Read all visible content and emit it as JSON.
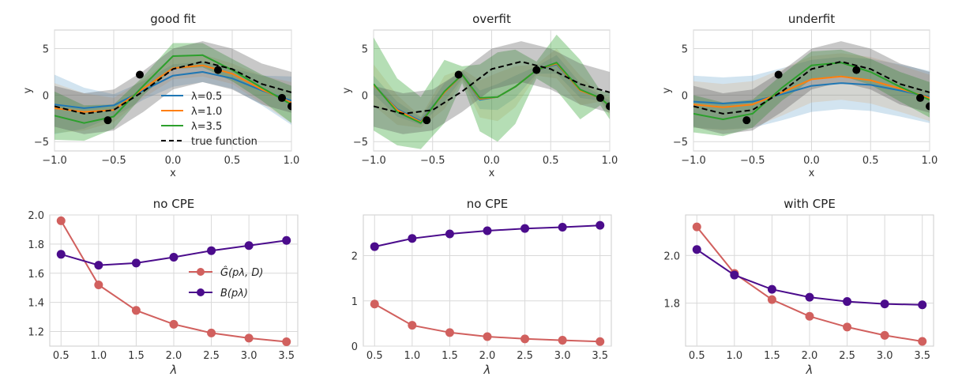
{
  "chart_data": [
    {
      "type": "line",
      "title": "good fit",
      "xlabel": "x",
      "ylabel": "y",
      "xlim": [
        -1.0,
        1.0
      ],
      "ylim": [
        -6,
        7
      ],
      "xticks": [
        -1.0,
        -0.5,
        0.0,
        0.5,
        1.0
      ],
      "xtick_labels": [
        "−1.0",
        "−0.5",
        "0.0",
        "0.5",
        "1.0"
      ],
      "yticks": [
        -5,
        0,
        5
      ],
      "ytick_labels": [
        "−5",
        "0",
        "5"
      ],
      "grid": true,
      "legend_placement": "lower-center",
      "legend": [
        {
          "label": "λ=0.5",
          "color": "#1f77b4",
          "style": "solid"
        },
        {
          "label": "λ=1.0",
          "color": "#ff7f0e",
          "style": "solid"
        },
        {
          "label": "λ=3.5",
          "color": "#2ca02c",
          "style": "solid"
        },
        {
          "label": "true function",
          "color": "#000000",
          "style": "dashed"
        }
      ],
      "points": {
        "x": [
          -0.55,
          -0.28,
          0.38,
          0.92,
          1.0
        ],
        "y": [
          -2.7,
          2.2,
          2.7,
          -0.3,
          -1.2
        ]
      },
      "series": [
        {
          "name": "λ=0.5",
          "color": "#1f77b4",
          "x": [
            -1.0,
            -0.75,
            -0.5,
            -0.25,
            0.0,
            0.25,
            0.5,
            0.75,
            1.0
          ],
          "y": [
            -1.0,
            -1.4,
            -1.1,
            0.5,
            2.1,
            2.5,
            1.8,
            0.5,
            -0.6
          ],
          "band": [
            3.2,
            2.2,
            1.2,
            1.0,
            1.2,
            1.1,
            1.1,
            1.6,
            2.6
          ]
        },
        {
          "name": "λ=1.0",
          "color": "#ff7f0e",
          "x": [
            -1.0,
            -0.75,
            -0.5,
            -0.25,
            0.0,
            0.25,
            0.5,
            0.75,
            1.0
          ],
          "y": [
            -1.4,
            -1.8,
            -1.6,
            0.7,
            2.9,
            3.2,
            2.3,
            0.6,
            -0.8
          ],
          "band": [
            2.7,
            2.0,
            1.3,
            1.0,
            1.2,
            1.2,
            1.1,
            1.5,
            2.2
          ]
        },
        {
          "name": "λ=3.5",
          "color": "#2ca02c",
          "x": [
            -1.0,
            -0.75,
            -0.5,
            -0.25,
            0.0,
            0.25,
            0.5,
            0.75,
            1.0
          ],
          "y": [
            -2.2,
            -3.0,
            -2.3,
            1.0,
            4.2,
            4.3,
            2.7,
            0.8,
            -1.0
          ],
          "band": [
            2.6,
            1.9,
            1.3,
            1.0,
            1.4,
            1.3,
            1.2,
            1.4,
            2.0
          ]
        },
        {
          "name": "true function",
          "color": "#000000",
          "dashed": true,
          "x": [
            -1.0,
            -0.75,
            -0.5,
            -0.25,
            0.0,
            0.25,
            0.5,
            0.75,
            1.0
          ],
          "y": [
            -1.2,
            -2.0,
            -1.6,
            0.4,
            2.8,
            3.6,
            2.8,
            1.2,
            0.3
          ],
          "band": [
            2.2,
            2.2,
            2.2,
            2.2,
            2.2,
            2.2,
            2.2,
            2.2,
            2.2
          ]
        }
      ]
    },
    {
      "type": "line",
      "title": "overfit",
      "xlabel": "x",
      "ylabel": "y",
      "xlim": [
        -1.0,
        1.0
      ],
      "ylim": [
        -6,
        7
      ],
      "xticks": [
        -1.0,
        -0.5,
        0.0,
        0.5,
        1.0
      ],
      "xtick_labels": [
        "−1.0",
        "−0.5",
        "0.0",
        "0.5",
        "1.0"
      ],
      "yticks": [
        -5,
        0,
        5
      ],
      "ytick_labels": [
        "−5",
        "0",
        "5"
      ],
      "grid": true,
      "points": {
        "x": [
          -0.55,
          -0.28,
          0.38,
          0.92,
          1.0
        ],
        "y": [
          -2.7,
          2.2,
          2.7,
          -0.3,
          -1.2
        ]
      },
      "series": [
        {
          "name": "λ=0.5",
          "color": "#1f77b4",
          "x": [
            -1.0,
            -0.8,
            -0.6,
            -0.4,
            -0.25,
            -0.1,
            0.05,
            0.2,
            0.38,
            0.55,
            0.75,
            0.92,
            1.0
          ],
          "y": [
            1.1,
            -1.5,
            -2.8,
            0.3,
            2.2,
            -0.5,
            -0.2,
            0.9,
            2.7,
            3.3,
            0.5,
            -0.3,
            -1.2
          ],
          "band": [
            1.0,
            0.8,
            0.4,
            1.0,
            0.4,
            1.0,
            1.4,
            1.2,
            0.4,
            1.0,
            0.8,
            0.3,
            0.6
          ]
        },
        {
          "name": "λ=1.0",
          "color": "#ff7f0e",
          "x": [
            -1.0,
            -0.8,
            -0.6,
            -0.4,
            -0.25,
            -0.1,
            0.05,
            0.2,
            0.38,
            0.55,
            0.75,
            0.92,
            1.0
          ],
          "y": [
            1.1,
            -1.6,
            -2.9,
            0.3,
            2.2,
            -0.4,
            -0.2,
            0.9,
            2.7,
            3.4,
            0.5,
            -0.3,
            -1.2
          ],
          "band": [
            2.2,
            1.6,
            0.6,
            1.8,
            0.6,
            2.0,
            2.6,
            2.2,
            0.6,
            1.6,
            1.6,
            0.4,
            1.0
          ]
        },
        {
          "name": "λ=3.5",
          "color": "#2ca02c",
          "x": [
            -1.0,
            -0.8,
            -0.6,
            -0.4,
            -0.25,
            -0.1,
            0.05,
            0.2,
            0.38,
            0.55,
            0.75,
            0.92,
            1.0
          ],
          "y": [
            1.2,
            -1.8,
            -3.0,
            0.4,
            2.2,
            -0.3,
            -0.2,
            0.9,
            2.7,
            3.5,
            0.6,
            -0.3,
            -1.2
          ],
          "band": [
            5.0,
            3.6,
            2.8,
            3.4,
            0.9,
            3.6,
            4.8,
            4.0,
            0.9,
            3.0,
            3.2,
            0.8,
            1.4
          ]
        },
        {
          "name": "true function",
          "color": "#000000",
          "dashed": true,
          "x": [
            -1.0,
            -0.75,
            -0.5,
            -0.25,
            0.0,
            0.25,
            0.5,
            0.75,
            1.0
          ],
          "y": [
            -1.2,
            -2.0,
            -1.6,
            0.4,
            2.8,
            3.6,
            2.8,
            1.2,
            0.3
          ],
          "band": [
            2.2,
            2.2,
            2.2,
            2.2,
            2.2,
            2.2,
            2.2,
            2.2,
            2.2
          ]
        }
      ]
    },
    {
      "type": "line",
      "title": "underfit",
      "xlabel": "x",
      "ylabel": "y",
      "xlim": [
        -1.0,
        1.0
      ],
      "ylim": [
        -6,
        7
      ],
      "xticks": [
        -1.0,
        -0.5,
        0.0,
        0.5,
        1.0
      ],
      "xtick_labels": [
        "−1.0",
        "−0.5",
        "0.0",
        "0.5",
        "1.0"
      ],
      "yticks": [
        -5,
        0,
        5
      ],
      "ytick_labels": [
        "−5",
        "0",
        "5"
      ],
      "grid": true,
      "points": {
        "x": [
          -0.55,
          -0.28,
          0.38,
          0.92,
          1.0
        ],
        "y": [
          -2.7,
          2.2,
          2.7,
          -0.3,
          -1.2
        ]
      },
      "series": [
        {
          "name": "λ=0.5",
          "color": "#1f77b4",
          "x": [
            -1.0,
            -0.75,
            -0.5,
            -0.25,
            0.0,
            0.25,
            0.5,
            0.75,
            1.0
          ],
          "y": [
            -0.7,
            -0.9,
            -0.7,
            0.1,
            1.0,
            1.3,
            1.1,
            0.5,
            -0.2
          ],
          "band": [
            2.8,
            2.8,
            2.8,
            2.8,
            2.8,
            2.8,
            2.8,
            2.8,
            2.8
          ]
        },
        {
          "name": "λ=1.0",
          "color": "#ff7f0e",
          "x": [
            -1.0,
            -0.75,
            -0.5,
            -0.25,
            0.0,
            0.25,
            0.5,
            0.75,
            1.0
          ],
          "y": [
            -1.0,
            -1.3,
            -1.0,
            0.3,
            1.7,
            2.0,
            1.6,
            0.7,
            -0.3
          ],
          "band": [
            2.5,
            2.5,
            2.5,
            2.5,
            2.5,
            2.5,
            2.5,
            2.5,
            2.5
          ]
        },
        {
          "name": "λ=3.5",
          "color": "#2ca02c",
          "x": [
            -1.0,
            -0.75,
            -0.5,
            -0.25,
            0.0,
            0.25,
            0.5,
            0.75,
            1.0
          ],
          "y": [
            -2.0,
            -2.6,
            -2.0,
            0.8,
            3.2,
            3.5,
            2.5,
            0.9,
            -0.5
          ],
          "band": [
            2.0,
            1.8,
            1.5,
            1.4,
            1.5,
            1.4,
            1.4,
            1.6,
            1.9
          ]
        },
        {
          "name": "true function",
          "color": "#000000",
          "dashed": true,
          "x": [
            -1.0,
            -0.75,
            -0.5,
            -0.25,
            0.0,
            0.25,
            0.5,
            0.75,
            1.0
          ],
          "y": [
            -1.2,
            -2.0,
            -1.6,
            0.4,
            2.8,
            3.6,
            2.8,
            1.2,
            0.3
          ],
          "band": [
            2.2,
            2.2,
            2.2,
            2.2,
            2.2,
            2.2,
            2.2,
            2.2,
            2.2
          ]
        }
      ]
    },
    {
      "type": "line",
      "title": "no CPE",
      "xlabel": "λ",
      "ylabel": "",
      "xlim": [
        0.35,
        3.65
      ],
      "ylim": [
        1.1,
        2.0
      ],
      "xticks": [
        0.5,
        1.0,
        1.5,
        2.0,
        2.5,
        3.0,
        3.5
      ],
      "xtick_labels": [
        "0.5",
        "1.0",
        "1.5",
        "2.0",
        "2.5",
        "3.0",
        "3.5"
      ],
      "yticks": [
        1.2,
        1.4,
        1.6,
        1.8,
        2.0
      ],
      "ytick_labels": [
        "1.2",
        "1.4",
        "1.6",
        "1.8",
        "2.0"
      ],
      "grid": true,
      "legend_placement": "center-right",
      "legend": [
        {
          "label": "Ĝ(pλ, D)",
          "color": "#d1605e"
        },
        {
          "label": "B(pλ)",
          "color": "#4b0c8c"
        }
      ],
      "x": [
        0.5,
        1.0,
        1.5,
        2.0,
        2.5,
        3.0,
        3.5
      ],
      "series": [
        {
          "name": "Ĝ(pλ, D)",
          "color": "#d1605e",
          "values": [
            1.96,
            1.52,
            1.345,
            1.25,
            1.19,
            1.155,
            1.13
          ]
        },
        {
          "name": "B(pλ)",
          "color": "#4b0c8c",
          "values": [
            1.73,
            1.655,
            1.67,
            1.71,
            1.755,
            1.79,
            1.825
          ]
        }
      ]
    },
    {
      "type": "line",
      "title": "no CPE",
      "xlabel": "λ",
      "ylabel": "",
      "xlim": [
        0.35,
        3.65
      ],
      "ylim": [
        0.0,
        2.9
      ],
      "xticks": [
        0.5,
        1.0,
        1.5,
        2.0,
        2.5,
        3.0,
        3.5
      ],
      "xtick_labels": [
        "0.5",
        "1.0",
        "1.5",
        "2.0",
        "2.5",
        "3.0",
        "3.5"
      ],
      "yticks": [
        0,
        1,
        2
      ],
      "ytick_labels": [
        "0",
        "1",
        "2"
      ],
      "grid": true,
      "x": [
        0.5,
        1.0,
        1.5,
        2.0,
        2.5,
        3.0,
        3.5
      ],
      "series": [
        {
          "color": "#d1605e",
          "values": [
            0.93,
            0.46,
            0.3,
            0.21,
            0.16,
            0.13,
            0.1
          ]
        },
        {
          "color": "#4b0c8c",
          "values": [
            2.2,
            2.38,
            2.48,
            2.55,
            2.6,
            2.63,
            2.67
          ]
        }
      ]
    },
    {
      "type": "line",
      "title": "with CPE",
      "xlabel": "λ",
      "ylabel": "",
      "xlim": [
        0.35,
        3.65
      ],
      "ylim": [
        1.62,
        2.17
      ],
      "xticks": [
        0.5,
        1.0,
        1.5,
        2.0,
        2.5,
        3.0,
        3.5
      ],
      "xtick_labels": [
        "0.5",
        "1.0",
        "1.5",
        "2.0",
        "2.5",
        "3.0",
        "3.5"
      ],
      "yticks": [
        1.8,
        2.0
      ],
      "ytick_labels": [
        "1.8",
        "2.0"
      ],
      "grid": true,
      "x": [
        0.5,
        1.0,
        1.5,
        2.0,
        2.5,
        3.0,
        3.5
      ],
      "series": [
        {
          "color": "#d1605e",
          "values": [
            2.12,
            1.925,
            1.815,
            1.745,
            1.7,
            1.665,
            1.64
          ]
        },
        {
          "color": "#4b0c8c",
          "values": [
            2.025,
            1.918,
            1.858,
            1.825,
            1.807,
            1.797,
            1.793
          ]
        }
      ]
    }
  ]
}
